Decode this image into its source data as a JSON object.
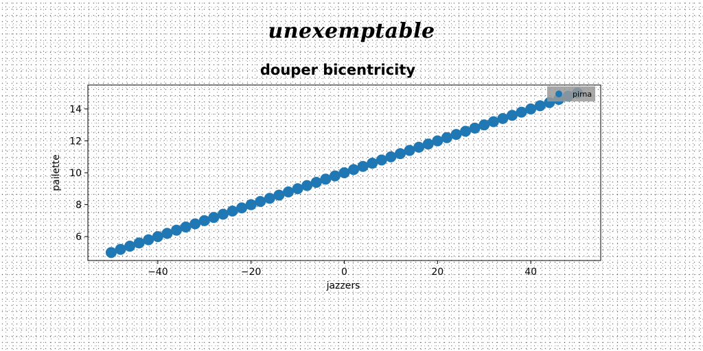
{
  "suptitle": "unexemptable",
  "chart_data": {
    "type": "scatter",
    "title": "douper bicentricity",
    "xlabel": "jazzers",
    "ylabel": "pailette",
    "xlim": [
      -55,
      55
    ],
    "ylim": [
      4.5,
      15.5
    ],
    "xticks": [
      -40,
      -20,
      0,
      20,
      40
    ],
    "xtick_labels": [
      "−40",
      "−20",
      "0",
      "20",
      "40"
    ],
    "yticks": [
      6,
      8,
      10,
      12,
      14
    ],
    "ytick_labels": [
      "6",
      "8",
      "10",
      "12",
      "14"
    ],
    "grid": false,
    "legend_position": "top-right",
    "colors": {
      "series": "#1f77b4",
      "legend_bg": "#999999"
    },
    "series": [
      {
        "name": "pirna",
        "marker": "circle",
        "x": [
          -50,
          -48,
          -46,
          -44,
          -42,
          -40,
          -38,
          -36,
          -34,
          -32,
          -30,
          -28,
          -26,
          -24,
          -22,
          -20,
          -18,
          -16,
          -14,
          -12,
          -10,
          -8,
          -6,
          -4,
          -2,
          0,
          2,
          4,
          6,
          8,
          10,
          12,
          14,
          16,
          18,
          20,
          22,
          24,
          26,
          28,
          30,
          32,
          34,
          36,
          38,
          40,
          42,
          44,
          46,
          48,
          50
        ],
        "y": [
          5.0,
          5.2,
          5.4,
          5.6,
          5.8,
          6.0,
          6.2,
          6.4,
          6.6,
          6.8,
          7.0,
          7.2,
          7.4,
          7.6,
          7.8,
          8.0,
          8.2,
          8.4,
          8.6,
          8.8,
          9.0,
          9.2,
          9.4,
          9.6,
          9.8,
          10.0,
          10.2,
          10.4,
          10.6,
          10.8,
          11.0,
          11.2,
          11.4,
          11.6,
          11.8,
          12.0,
          12.2,
          12.4,
          12.6,
          12.8,
          13.0,
          13.2,
          13.4,
          13.6,
          13.8,
          14.0,
          14.2,
          14.4,
          14.6,
          14.8,
          15.0
        ]
      }
    ]
  }
}
